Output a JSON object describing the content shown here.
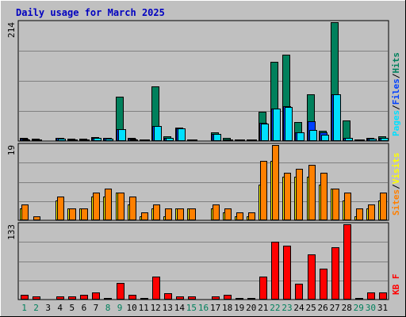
{
  "chart_data": {
    "type": "bar",
    "title": "Daily usage for March 2025",
    "categories": [
      "1",
      "2",
      "3",
      "4",
      "5",
      "6",
      "7",
      "8",
      "9",
      "10",
      "11",
      "12",
      "13",
      "14",
      "15",
      "16",
      "17",
      "18",
      "19",
      "20",
      "21",
      "22",
      "23",
      "24",
      "25",
      "26",
      "27",
      "28",
      "29",
      "30",
      "31"
    ],
    "weekend_days": [
      "1",
      "2",
      "8",
      "9",
      "15",
      "16",
      "22",
      "23",
      "29",
      "30"
    ],
    "colors": {
      "background": "#c0c0c0",
      "title": "#0000c0",
      "hits": "#00805c",
      "files": "#0040ff",
      "pages": "#00e0ff",
      "visits": "#ffff00",
      "sites": "#ff8000",
      "kbytes": "#ff0000",
      "weekend_label": "#00805c",
      "weekday_label": "#000000"
    },
    "panels": [
      {
        "id": "top",
        "max_label": "214",
        "ymax": 214,
        "series": [
          {
            "name": "Hits",
            "color": "#00805c",
            "values": [
              5,
              4,
              0,
              6,
              4,
              4,
              7,
              6,
              80,
              5,
              3,
              98,
              8,
              24,
              3,
              0,
              15,
              5,
              3,
              3,
              53,
              143,
              155,
              34,
              84,
              18,
              214,
              37,
              3,
              5,
              8
            ]
          },
          {
            "name": "Files",
            "color": "#0040ff",
            "values": [
              4,
              3,
              0,
              5,
              3,
              3,
              6,
              5,
              22,
              4,
              3,
              27,
              6,
              23,
              3,
              0,
              13,
              3,
              2,
              2,
              33,
              59,
              63,
              16,
              36,
              15,
              84,
              5,
              3,
              4,
              6
            ]
          },
          {
            "name": "Pages",
            "color": "#00e0ff",
            "values": [
              3,
              2,
              0,
              4,
              3,
              3,
              5,
              4,
              22,
              3,
              2,
              27,
              6,
              23,
              2,
              0,
              13,
              3,
              2,
              2,
              32,
              58,
              61,
              15,
              20,
              11,
              84,
              5,
              2,
              4,
              5
            ]
          }
        ],
        "legend": [
          "Pages",
          "Files",
          "Hits"
        ]
      },
      {
        "id": "middle",
        "max_label": "19",
        "ymax": 19,
        "series": [
          {
            "name": "Visits",
            "color": "#ffff00",
            "values": [
              3,
              0,
              0,
              5,
              3,
              3,
              6,
              6,
              7,
              4,
              1,
              3,
              1,
              3,
              3,
              0,
              3,
              2,
              1,
              1,
              9,
              15,
              11,
              11,
              11,
              9,
              8,
              5,
              1,
              3,
              5
            ]
          },
          {
            "name": "Sites",
            "color": "#ff8000",
            "values": [
              4,
              1,
              0,
              6,
              3,
              3,
              7,
              8,
              7,
              6,
              2,
              4,
              3,
              3,
              3,
              0,
              4,
              3,
              2,
              2,
              15,
              19,
              12,
              13,
              14,
              12,
              8,
              7,
              3,
              4,
              7
            ]
          }
        ],
        "legend": [
          "Sites",
          "Visits"
        ]
      },
      {
        "id": "bottom",
        "max_label": "133",
        "ymax": 133,
        "series": [
          {
            "name": "KBytes",
            "color": "#ff0000",
            "values": [
              9,
              5,
              0,
              6,
              6,
              9,
              13,
              2,
              30,
              8,
              2,
              41,
              11,
              6,
              5,
              0,
              6,
              8,
              2,
              2,
              40,
              102,
              95,
              28,
              80,
              54,
              92,
              133,
              3,
              12,
              12
            ]
          }
        ],
        "legend": [
          "KB F"
        ]
      }
    ]
  }
}
